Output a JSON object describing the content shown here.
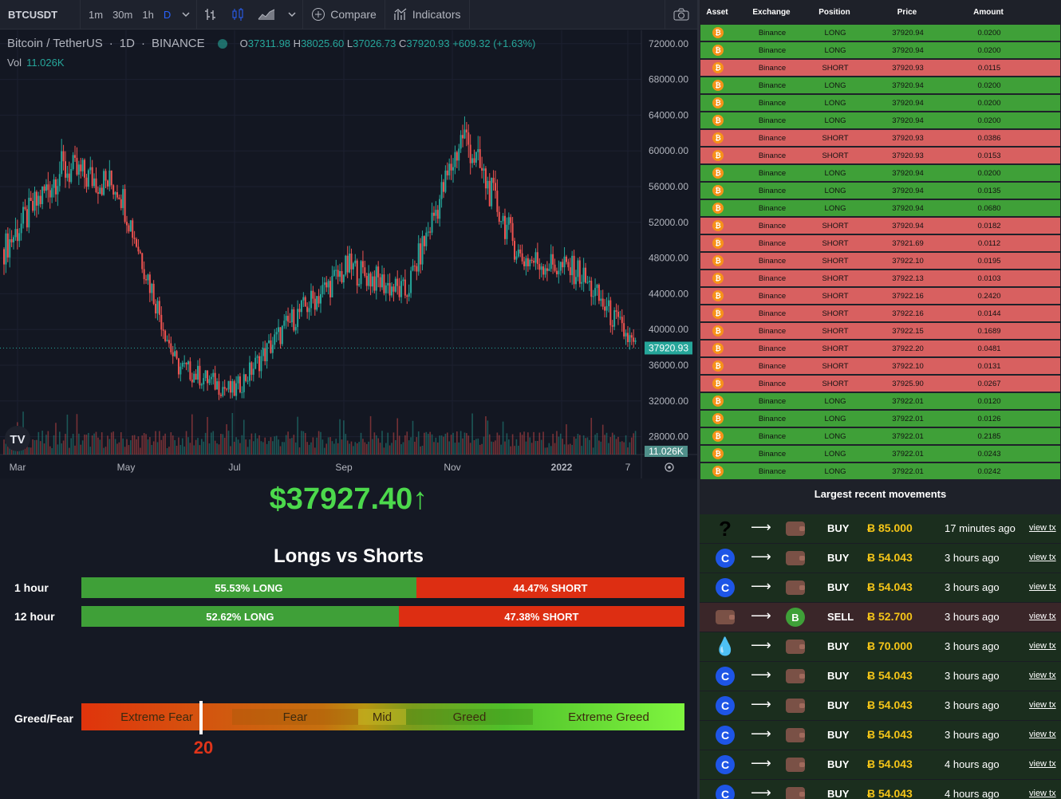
{
  "toolbar": {
    "symbol": "BTCUSDT",
    "timeframes": [
      "1m",
      "30m",
      "1h",
      "D"
    ],
    "active_timeframe": "D",
    "compare_label": "Compare",
    "indicators_label": "Indicators"
  },
  "chart": {
    "pair": "Bitcoin / TetherUS",
    "interval": "1D",
    "exchange": "BINANCE",
    "ohlc": {
      "o_label": "O",
      "o": "37311.98",
      "h_label": "H",
      "h": "38025.60",
      "l_label": "L",
      "l": "37026.73",
      "c_label": "C",
      "c": "37920.93",
      "change": "+609.32 (+1.63%)"
    },
    "vol_label": "Vol",
    "vol_value": "11.026K",
    "current_price_tag": "37920.93",
    "volume_tag": "11.026K",
    "watermark": "TV"
  },
  "chart_data": {
    "type": "candlestick",
    "title": "Bitcoin / TetherUS 1D BINANCE",
    "y_ticks": [
      "72000.00",
      "68000.00",
      "64000.00",
      "60000.00",
      "56000.00",
      "52000.00",
      "48000.00",
      "44000.00",
      "40000.00",
      "36000.00",
      "32000.00",
      "28000.00"
    ],
    "ylim": [
      26000,
      73500
    ],
    "x_ticks": [
      "Mar",
      "May",
      "Jul",
      "Sep",
      "Nov",
      "2022",
      "7"
    ],
    "series": [
      {
        "name": "close",
        "x": [
          "Mar",
          "Apr",
          "May",
          "Jun",
          "Jul",
          "Aug",
          "Sep",
          "Oct",
          "Nov",
          "Dec",
          "2022",
          "Jan-7"
        ],
        "values": [
          49000,
          58000,
          56000,
          36000,
          33000,
          41000,
          47000,
          44000,
          62000,
          48000,
          46500,
          37920.93
        ]
      }
    ],
    "last_price": 37920.93,
    "colors": {
      "up": "#26a69a",
      "down": "#ef5350"
    }
  },
  "ticker_price": "$37927.40↑",
  "longs_shorts": {
    "title": "Longs vs Shorts",
    "rows": [
      {
        "label": "1 hour",
        "long_pct": 55.53,
        "long_text": "55.53% LONG",
        "short_text": "44.47% SHORT"
      },
      {
        "label": "12 hour",
        "long_pct": 52.62,
        "long_text": "52.62% LONG",
        "short_text": "47.38% SHORT"
      }
    ]
  },
  "greed_fear": {
    "label": "Greed/Fear",
    "segments": [
      "Extreme Fear",
      "Fear",
      "Mid",
      "Greed",
      "Extreme Greed"
    ],
    "value": "20"
  },
  "trades_table": {
    "headers": [
      "Asset",
      "Exchange",
      "Position",
      "Price",
      "Amount"
    ],
    "rows": [
      {
        "exchange": "Binance",
        "position": "LONG",
        "price": "37920.94",
        "amount": "0.0200"
      },
      {
        "exchange": "Binance",
        "position": "LONG",
        "price": "37920.94",
        "amount": "0.0200"
      },
      {
        "exchange": "Binance",
        "position": "SHORT",
        "price": "37920.93",
        "amount": "0.0115"
      },
      {
        "exchange": "Binance",
        "position": "LONG",
        "price": "37920.94",
        "amount": "0.0200"
      },
      {
        "exchange": "Binance",
        "position": "LONG",
        "price": "37920.94",
        "amount": "0.0200"
      },
      {
        "exchange": "Binance",
        "position": "LONG",
        "price": "37920.94",
        "amount": "0.0200"
      },
      {
        "exchange": "Binance",
        "position": "SHORT",
        "price": "37920.93",
        "amount": "0.0386"
      },
      {
        "exchange": "Binance",
        "position": "SHORT",
        "price": "37920.93",
        "amount": "0.0153"
      },
      {
        "exchange": "Binance",
        "position": "LONG",
        "price": "37920.94",
        "amount": "0.0200"
      },
      {
        "exchange": "Binance",
        "position": "LONG",
        "price": "37920.94",
        "amount": "0.0135"
      },
      {
        "exchange": "Binance",
        "position": "LONG",
        "price": "37920.94",
        "amount": "0.0680"
      },
      {
        "exchange": "Binance",
        "position": "SHORT",
        "price": "37920.94",
        "amount": "0.0182"
      },
      {
        "exchange": "Binance",
        "position": "SHORT",
        "price": "37921.69",
        "amount": "0.0112"
      },
      {
        "exchange": "Binance",
        "position": "SHORT",
        "price": "37922.10",
        "amount": "0.0195"
      },
      {
        "exchange": "Binance",
        "position": "SHORT",
        "price": "37922.13",
        "amount": "0.0103"
      },
      {
        "exchange": "Binance",
        "position": "SHORT",
        "price": "37922.16",
        "amount": "0.2420"
      },
      {
        "exchange": "Binance",
        "position": "SHORT",
        "price": "37922.16",
        "amount": "0.0144"
      },
      {
        "exchange": "Binance",
        "position": "SHORT",
        "price": "37922.15",
        "amount": "0.1689"
      },
      {
        "exchange": "Binance",
        "position": "SHORT",
        "price": "37922.20",
        "amount": "0.0481"
      },
      {
        "exchange": "Binance",
        "position": "SHORT",
        "price": "37922.10",
        "amount": "0.0131"
      },
      {
        "exchange": "Binance",
        "position": "SHORT",
        "price": "37925.90",
        "amount": "0.0267"
      },
      {
        "exchange": "Binance",
        "position": "LONG",
        "price": "37922.01",
        "amount": "0.0120"
      },
      {
        "exchange": "Binance",
        "position": "LONG",
        "price": "37922.01",
        "amount": "0.0126"
      },
      {
        "exchange": "Binance",
        "position": "LONG",
        "price": "37922.01",
        "amount": "0.2185"
      },
      {
        "exchange": "Binance",
        "position": "LONG",
        "price": "37922.01",
        "amount": "0.0243"
      },
      {
        "exchange": "Binance",
        "position": "LONG",
        "price": "37922.01",
        "amount": "0.0242"
      }
    ]
  },
  "movements": {
    "title": "Largest recent movements",
    "link_label": "view tx",
    "rows": [
      {
        "from": "unknown",
        "to": "wallet",
        "type": "BUY",
        "amount": "Ƀ 85.000",
        "time": "17 minutes ago"
      },
      {
        "from": "coinbase",
        "to": "wallet",
        "type": "BUY",
        "amount": "Ƀ 54.043",
        "time": "3 hours ago"
      },
      {
        "from": "coinbase",
        "to": "wallet",
        "type": "BUY",
        "amount": "Ƀ 54.043",
        "time": "3 hours ago"
      },
      {
        "from": "wallet",
        "to": "bitcoin",
        "type": "SELL",
        "amount": "Ƀ 52.700",
        "time": "3 hours ago"
      },
      {
        "from": "drop",
        "to": "wallet",
        "type": "BUY",
        "amount": "Ƀ 70.000",
        "time": "3 hours ago"
      },
      {
        "from": "coinbase",
        "to": "wallet",
        "type": "BUY",
        "amount": "Ƀ 54.043",
        "time": "3 hours ago"
      },
      {
        "from": "coinbase",
        "to": "wallet",
        "type": "BUY",
        "amount": "Ƀ 54.043",
        "time": "3 hours ago"
      },
      {
        "from": "coinbase",
        "to": "wallet",
        "type": "BUY",
        "amount": "Ƀ 54.043",
        "time": "3 hours ago"
      },
      {
        "from": "coinbase",
        "to": "wallet",
        "type": "BUY",
        "amount": "Ƀ 54.043",
        "time": "4 hours ago"
      },
      {
        "from": "coinbase",
        "to": "wallet",
        "type": "BUY",
        "amount": "Ƀ 54.043",
        "time": "4 hours ago"
      }
    ]
  }
}
